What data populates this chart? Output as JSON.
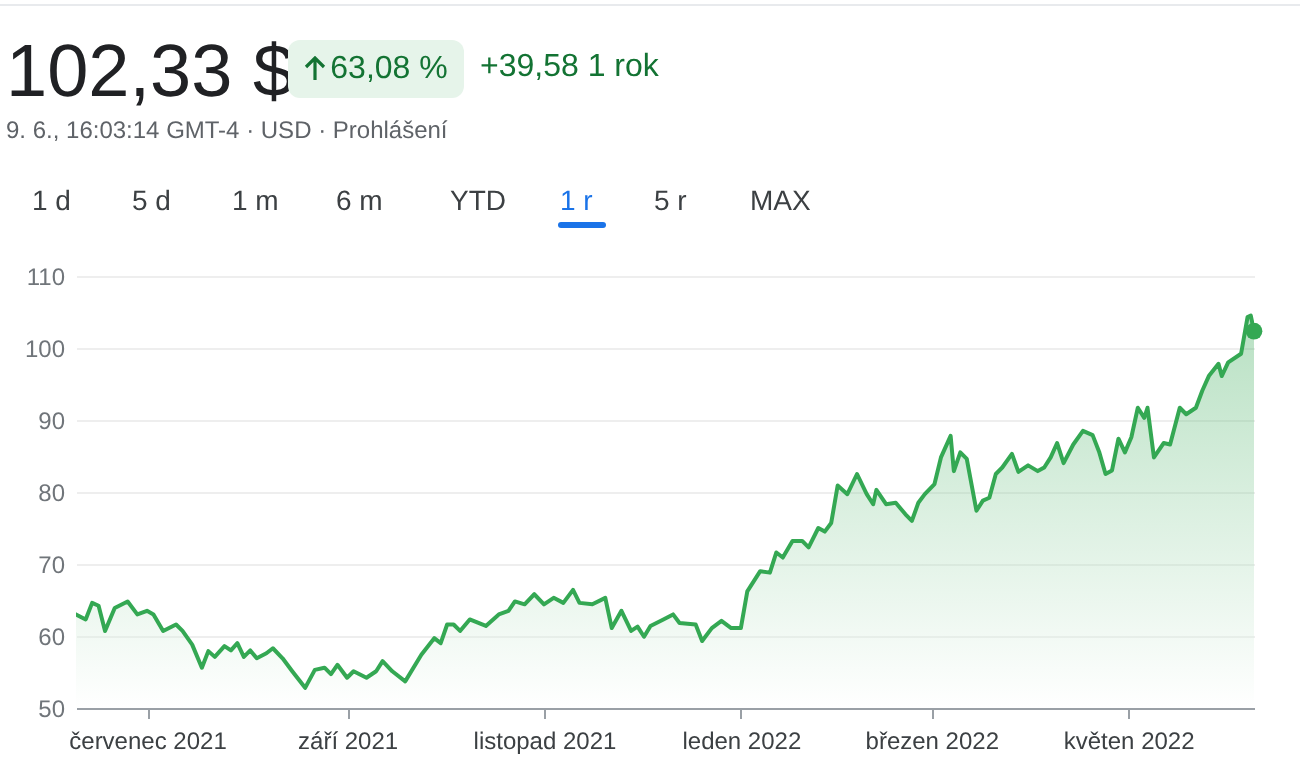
{
  "chart_data": {
    "type": "area",
    "title": "102,33 $",
    "annotations": [
      "63,08 %",
      "+39,58 1 rok",
      "9. 6., 16:03:14 GMT-4 · USD · Prohlášení",
      "1 d",
      "5 d",
      "1 m",
      "6 m",
      "YTD",
      "1 r",
      "5 r",
      "MAX"
    ],
    "x": [
      "2021-06-09",
      "2021-06-12",
      "2021-06-14",
      "2021-06-16",
      "2021-06-18",
      "2021-06-21",
      "2021-06-25",
      "2021-06-28",
      "2021-07-01",
      "2021-07-03",
      "2021-07-06",
      "2021-07-10",
      "2021-07-12",
      "2021-07-15",
      "2021-07-18",
      "2021-07-20",
      "2021-07-22",
      "2021-07-25",
      "2021-07-27",
      "2021-07-29",
      "2021-07-31",
      "2021-08-02",
      "2021-08-04",
      "2021-08-07",
      "2021-08-09",
      "2021-08-12",
      "2021-08-15",
      "2021-08-19",
      "2021-08-22",
      "2021-08-25",
      "2021-08-27",
      "2021-08-29",
      "2021-09-01",
      "2021-09-03",
      "2021-09-07",
      "2021-09-10",
      "2021-09-12",
      "2021-09-15",
      "2021-09-19",
      "2021-09-24",
      "2021-09-28",
      "2021-09-30",
      "2021-10-02",
      "2021-10-04",
      "2021-10-06",
      "2021-10-09",
      "2021-10-14",
      "2021-10-18",
      "2021-10-21",
      "2021-10-23",
      "2021-10-26",
      "2021-10-29",
      "2021-11-01",
      "2021-11-04",
      "2021-11-07",
      "2021-11-10",
      "2021-11-12",
      "2021-11-16",
      "2021-11-20",
      "2021-11-22",
      "2021-11-25",
      "2021-11-28",
      "2021-11-30",
      "2021-12-02",
      "2021-12-04",
      "2021-12-08",
      "2021-12-11",
      "2021-12-13",
      "2021-12-18",
      "2021-12-20",
      "2021-12-23",
      "2021-12-26",
      "2021-12-29",
      "2022-01-01",
      "2022-01-03",
      "2022-01-07",
      "2022-01-10",
      "2022-01-12",
      "2022-01-14",
      "2022-01-17",
      "2022-01-20",
      "2022-01-22",
      "2022-01-25",
      "2022-01-27",
      "2022-01-29",
      "2022-01-31",
      "2022-02-03",
      "2022-02-06",
      "2022-02-09",
      "2022-02-11",
      "2022-02-12",
      "2022-02-15",
      "2022-02-18",
      "2022-02-21",
      "2022-02-23",
      "2022-02-25",
      "2022-02-27",
      "2022-03-02",
      "2022-03-04",
      "2022-03-07",
      "2022-03-08",
      "2022-03-10",
      "2022-03-12",
      "2022-03-15",
      "2022-03-17",
      "2022-03-19",
      "2022-03-21",
      "2022-03-23",
      "2022-03-26",
      "2022-03-28",
      "2022-03-31",
      "2022-04-03",
      "2022-04-05",
      "2022-04-07",
      "2022-04-09",
      "2022-04-11",
      "2022-04-14",
      "2022-04-17",
      "2022-04-20",
      "2022-04-22",
      "2022-04-24",
      "2022-04-26",
      "2022-04-28",
      "2022-04-30",
      "2022-05-02",
      "2022-05-04",
      "2022-05-06",
      "2022-05-07",
      "2022-05-09",
      "2022-05-12",
      "2022-05-14",
      "2022-05-17",
      "2022-05-19",
      "2022-05-22",
      "2022-05-24",
      "2022-05-26",
      "2022-05-29",
      "2022-05-30",
      "2022-06-01",
      "2022-06-05",
      "2022-06-07",
      "2022-06-08",
      "2022-06-09"
    ],
    "series": [
      {
        "color": "#34a853",
        "values": [
          63.0,
          62.3,
          64.6,
          64.2,
          60.7,
          63.9,
          64.8,
          63.0,
          63.5,
          63.0,
          60.7,
          61.6,
          60.7,
          58.8,
          55.6,
          57.9,
          57.1,
          58.6,
          58.0,
          59.0,
          57.1,
          58.0,
          56.9,
          57.6,
          58.3,
          56.9,
          55.1,
          52.8,
          55.3,
          55.6,
          54.7,
          56.0,
          54.2,
          55.1,
          54.2,
          55.1,
          56.5,
          55.1,
          53.7,
          57.4,
          59.7,
          59.0,
          61.6,
          61.6,
          60.7,
          62.3,
          61.4,
          63.0,
          63.5,
          64.8,
          64.4,
          65.8,
          64.4,
          65.3,
          64.6,
          66.4,
          64.6,
          64.4,
          65.3,
          61.1,
          63.5,
          60.7,
          61.3,
          59.9,
          61.4,
          62.3,
          63.0,
          61.8,
          61.6,
          59.3,
          61.1,
          62.1,
          61.1,
          61.1,
          66.2,
          69.0,
          68.8,
          71.6,
          70.9,
          73.2,
          73.2,
          72.3,
          75.0,
          74.5,
          75.7,
          80.9,
          79.7,
          82.5,
          79.7,
          78.3,
          80.3,
          78.3,
          78.5,
          76.9,
          76.0,
          78.5,
          79.7,
          81.1,
          84.8,
          87.8,
          82.9,
          85.5,
          84.6,
          77.4,
          78.8,
          79.2,
          82.5,
          83.4,
          85.3,
          82.8,
          83.7,
          82.9,
          83.4,
          84.8,
          86.8,
          84.0,
          86.6,
          88.5,
          87.9,
          85.6,
          82.5,
          83.0,
          87.4,
          85.5,
          87.6,
          91.7,
          90.3,
          91.7,
          84.8,
          86.8,
          86.6,
          91.7,
          90.8,
          91.7,
          94.1,
          96.1,
          97.8,
          96.1,
          98.0,
          99.2,
          104.3,
          104.5,
          102.33
        ]
      }
    ],
    "xlim": [
      "2021-06-09",
      "2022-06-09"
    ],
    "xticks": [
      {
        "value": "2021-07-01",
        "label": "červenec 2021"
      },
      {
        "value": "2021-09-01",
        "label": "září 2021"
      },
      {
        "value": "2021-11-01",
        "label": "listopad 2021"
      },
      {
        "value": "2022-01-01",
        "label": "leden 2022"
      },
      {
        "value": "2022-03-01",
        "label": "březen 2022"
      },
      {
        "value": "2022-05-01",
        "label": "květen 2022"
      }
    ],
    "ylim": [
      50,
      110
    ],
    "yticks": [
      50,
      60,
      70,
      80,
      90,
      100,
      110
    ],
    "grid": "y"
  }
}
